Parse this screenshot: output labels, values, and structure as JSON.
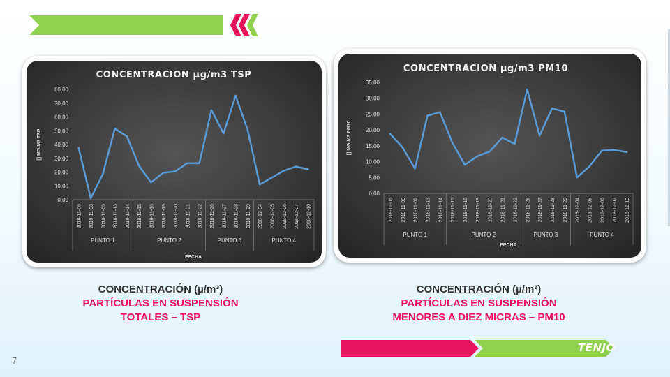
{
  "page_number": "7",
  "logo": "TENJO",
  "colors": {
    "green": "#8fd14f",
    "pink": "#e8155e",
    "line": "#5b9bd5"
  },
  "captions": [
    {
      "line1": "CONCENTRACIÓN (µ/m³)",
      "line2": "PARTÍCULAS EN SUSPENSIÓN",
      "line3": "TOTALES – TSP"
    },
    {
      "line1": "CONCENTRACIÓN (µ/m³)",
      "line2": "PARTÍCULAS EN SUSPENSIÓN",
      "line3": "MENORES A DIEZ MICRAS – PM10"
    }
  ],
  "chart_data": [
    {
      "type": "line",
      "title": "CONCENTRACION µg/m3 TSP",
      "xlabel": "FECHA",
      "ylabel": "[] MG/M3 TSP",
      "ylim": [
        0,
        80
      ],
      "ytick_step": 10,
      "grid": false,
      "categories": [
        "2018-11-06",
        "2018-11-08",
        "2018-11-09",
        "2018-11-13",
        "2018-11-14",
        "2018-11-15",
        "2018-11-16",
        "2018-11-19",
        "2018-11-20",
        "2018-11-21",
        "2018-11-22",
        "2018-11-26",
        "2018-11-27",
        "2018-11-28",
        "2018-11-29",
        "2018-12-04",
        "2018-12-05",
        "2018-12-06",
        "2018-12-07",
        "2018-12-10"
      ],
      "groups": [
        {
          "label": "PUNTO 1",
          "count": 5
        },
        {
          "label": "PUNTO 2",
          "count": 6
        },
        {
          "label": "PUNTO 3",
          "count": 4
        },
        {
          "label": "PUNTO 4",
          "count": 5
        }
      ],
      "values": [
        37.5,
        1.0,
        18.5,
        51.5,
        46.0,
        24.5,
        12.5,
        19.5,
        20.5,
        26.5,
        26.5,
        65.0,
        48.0,
        75.5,
        50.5,
        11.0,
        16.0,
        21.0,
        24.0,
        22.0
      ]
    },
    {
      "type": "line",
      "title": "CONCENTRACION µg/m3 PM10",
      "xlabel": "FECHA",
      "ylabel": "[] MG/M3 PM10",
      "ylim": [
        0,
        35
      ],
      "ytick_step": 5,
      "grid": false,
      "categories": [
        "2018-11-06",
        "2018-11-08",
        "2018-11-09",
        "2018-11-13",
        "2018-11-14",
        "2018-11-15",
        "2018-11-16",
        "2018-11-19",
        "2018-11-20",
        "2018-11-21",
        "2018-11-22",
        "2018-11-26",
        "2018-11-27",
        "2018-11-28",
        "2018-11-29",
        "2018-12-04",
        "2018-12-05",
        "2018-12-06",
        "2018-12-07",
        "2018-12-10"
      ],
      "groups": [
        {
          "label": "PUNTO 1",
          "count": 5
        },
        {
          "label": "PUNTO 2",
          "count": 6
        },
        {
          "label": "PUNTO 3",
          "count": 4
        },
        {
          "label": "PUNTO 4",
          "count": 5
        }
      ],
      "values": [
        18.8,
        14.5,
        7.8,
        24.5,
        25.6,
        16.0,
        9.0,
        11.7,
        13.2,
        17.6,
        15.6,
        32.8,
        18.2,
        26.8,
        25.8,
        5.0,
        8.5,
        13.5,
        13.7,
        13.0
      ]
    }
  ]
}
